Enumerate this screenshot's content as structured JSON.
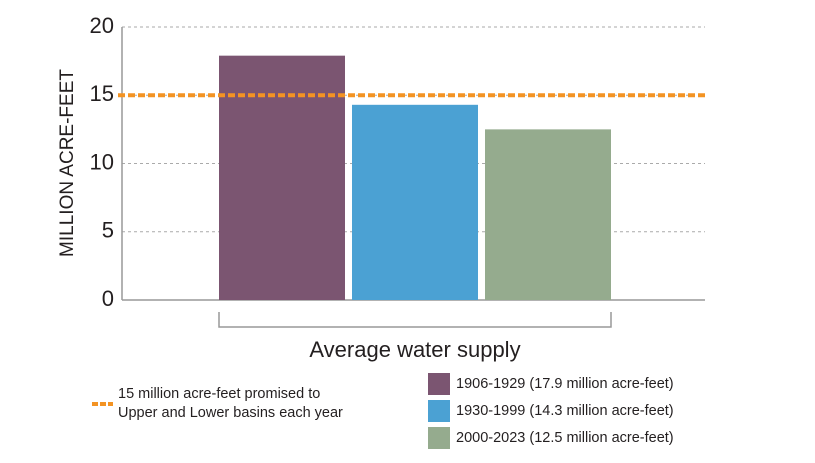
{
  "chart_data": {
    "type": "bar",
    "y_label": "MILLION ACRE-FEET",
    "categories": [
      "Average water supply"
    ],
    "series": [
      {
        "name": "1906-1929 (17.9 million acre-feet)",
        "color": "#7b5571",
        "values": [
          17.9
        ]
      },
      {
        "name": "1930-1999 (14.3 million acre-feet)",
        "color": "#4ba1d3",
        "values": [
          14.3
        ]
      },
      {
        "name": "2000-2023 (12.5 million acre-feet)",
        "color": "#95ab8e",
        "values": [
          12.5
        ]
      }
    ],
    "reference_line": {
      "value": 15,
      "color": "#f39323",
      "label_lines": [
        "15 million acre-feet promised to",
        "Upper and Lower basins each year"
      ]
    },
    "ylim": [
      0,
      20
    ],
    "yticks": [
      0,
      5,
      10,
      15,
      20
    ],
    "grid": true
  }
}
